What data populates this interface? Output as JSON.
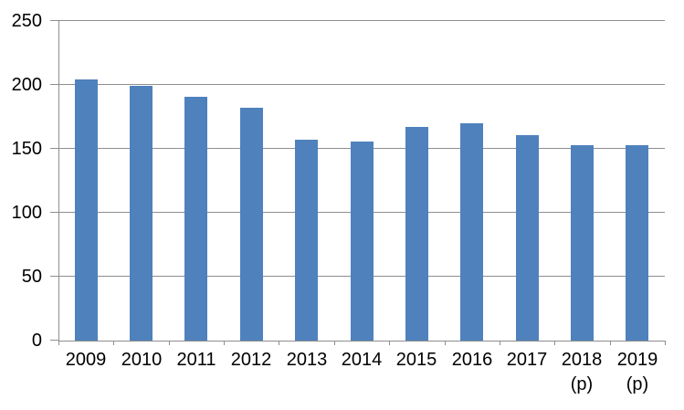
{
  "chart_data": {
    "type": "bar",
    "title": "",
    "xlabel": "",
    "ylabel": "",
    "categories": [
      "2009",
      "2010",
      "2011",
      "2012",
      "2013",
      "2014",
      "2015",
      "2016",
      "2017",
      "2018",
      "2019"
    ],
    "category_sublabels": [
      "",
      "",
      "",
      "",
      "",
      "",
      "",
      "",
      "",
      "(p)",
      "(p)"
    ],
    "values": [
      204,
      199,
      191,
      182,
      157,
      156,
      167,
      170,
      161,
      153,
      153
    ],
    "ylim": [
      0,
      250
    ],
    "yticks": [
      0,
      50,
      100,
      150,
      200,
      250
    ],
    "grid": true,
    "legend": false,
    "colors": {
      "bar": "#4F81BD",
      "gridline": "#8E8E8E",
      "axis": "#8E8E8E",
      "text": "#000000",
      "background": "#FFFFFF"
    }
  }
}
